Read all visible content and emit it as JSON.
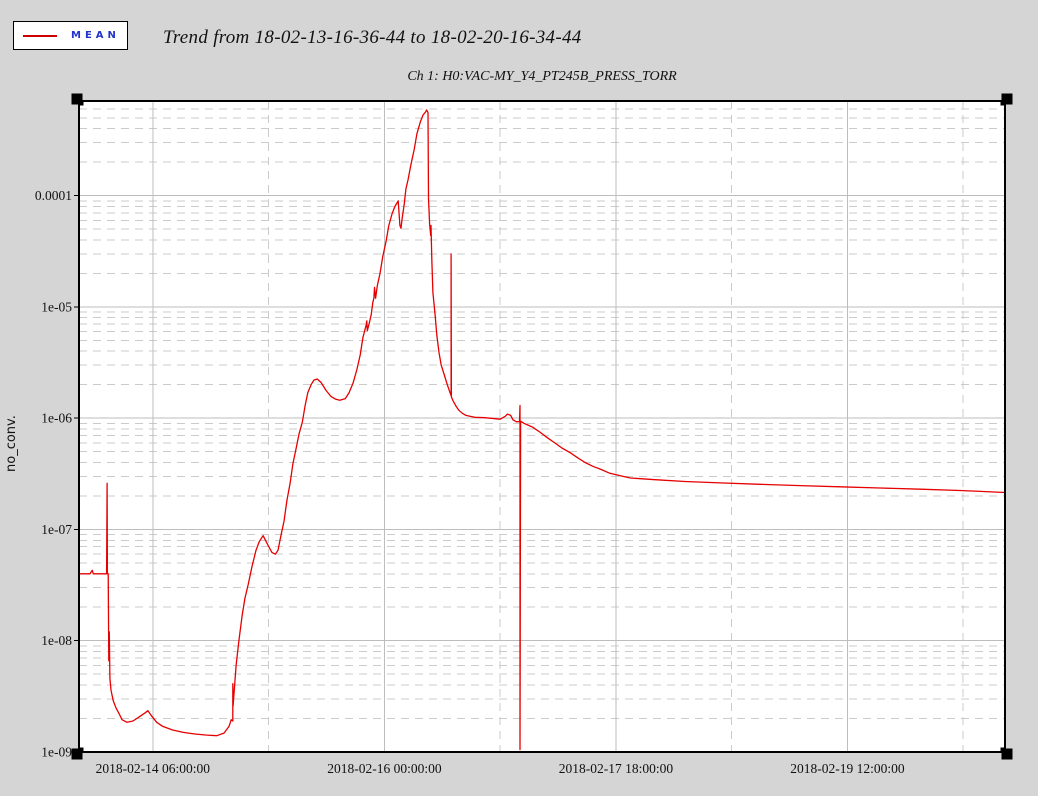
{
  "window": {
    "background": "#d5d5d5",
    "plot_background": "#ffffff"
  },
  "legend": {
    "label": "MEAN",
    "line_color": "#cc0000"
  },
  "header": {
    "title": "Trend from 18-02-13-16-36-44 to 18-02-20-16-34-44",
    "subtitle": "Ch 1: H0:VAC-MY_Y4_PT245B_PRESS_TORR"
  },
  "plot_style": {
    "frame_color": "#000000",
    "grid_major_color": "#bdbdbd",
    "grid_minor_color": "#cbcbcb",
    "handle_color": "#000000",
    "tick_label_color": "#111111"
  },
  "chart_data": {
    "type": "line",
    "title": "Trend from 18-02-13-16-36-44 to 18-02-20-16-34-44",
    "subtitle": "Ch 1: H0:VAC-MY_Y4_PT245B_PRESS_TORR",
    "ylabel": "no_conv.",
    "xlabel": "",
    "x_unit": "hours since 2018-02-13 16:36:44",
    "xlim": [
      0,
      167.967
    ],
    "ylim_log": [
      1e-09,
      0.00071
    ],
    "grid": {
      "horizontal_major": true,
      "horizontal_minor_log_2_to_9": true,
      "vertical_major": true,
      "vertical_minor": true
    },
    "legend_position": "top-left outside",
    "x_ticks": [
      {
        "hours": 13.388,
        "label": "2018-02-14 06:00:00"
      },
      {
        "hours": 55.388,
        "label": "2018-02-16 00:00:00"
      },
      {
        "hours": 97.388,
        "label": "2018-02-17 18:00:00"
      },
      {
        "hours": 139.388,
        "label": "2018-02-19 12:00:00"
      }
    ],
    "x_minor_hours": [
      34.388,
      76.388,
      118.388,
      160.388
    ],
    "y_ticks": [
      {
        "value": 0.0001,
        "label": "0.0001"
      },
      {
        "value": 1e-05,
        "label": "1e-05"
      },
      {
        "value": 1e-06,
        "label": "1e-06"
      },
      {
        "value": 1e-07,
        "label": "1e-07"
      },
      {
        "value": 1e-08,
        "label": "1e-08"
      },
      {
        "value": 1e-09,
        "label": "1e-09"
      }
    ],
    "series": [
      {
        "name": "MEAN",
        "color": "#e60000",
        "points": [
          [
            0,
            4e-08
          ],
          [
            1.0,
            4e-08
          ],
          [
            2.0,
            4e-08
          ],
          [
            2.4,
            4.3e-08
          ],
          [
            2.6,
            4e-08
          ],
          [
            4.0,
            4e-08
          ],
          [
            5.0,
            4e-08
          ],
          [
            5.1,
            2.6e-07
          ],
          [
            5.15,
            4e-08
          ],
          [
            5.3,
            4e-08
          ],
          [
            5.4,
            6.6e-09
          ],
          [
            5.5,
            1.2e-08
          ],
          [
            5.6,
            4.6e-09
          ],
          [
            5.8,
            3.6e-09
          ],
          [
            6.2,
            2.9e-09
          ],
          [
            6.7,
            2.5e-09
          ],
          [
            7.3,
            2.2e-09
          ],
          [
            7.8,
            1.95e-09
          ],
          [
            8.7,
            1.85e-09
          ],
          [
            9.8,
            1.9e-09
          ],
          [
            11.1,
            2.1e-09
          ],
          [
            12.0,
            2.25e-09
          ],
          [
            12.5,
            2.35e-09
          ],
          [
            13.2,
            2.1e-09
          ],
          [
            14.1,
            1.85e-09
          ],
          [
            15.2,
            1.7e-09
          ],
          [
            16.9,
            1.58e-09
          ],
          [
            18.9,
            1.5e-09
          ],
          [
            21.0,
            1.45e-09
          ],
          [
            23.2,
            1.42e-09
          ],
          [
            25.0,
            1.4e-09
          ],
          [
            26.3,
            1.48e-09
          ],
          [
            27.2,
            1.7e-09
          ],
          [
            27.6,
            1.95e-09
          ],
          [
            27.9,
            1.9e-09
          ],
          [
            27.9,
            4.1e-09
          ],
          [
            27.95,
            2.6e-09
          ],
          [
            28.5,
            6e-09
          ],
          [
            29.0,
            1e-08
          ],
          [
            29.6,
            1.7e-08
          ],
          [
            30.1,
            2.4e-08
          ],
          [
            30.7,
            3.2e-08
          ],
          [
            31.4,
            4.7e-08
          ],
          [
            32.1,
            6.5e-08
          ],
          [
            32.7,
            7.8e-08
          ],
          [
            33.4,
            8.8e-08
          ],
          [
            34.3,
            7.2e-08
          ],
          [
            35.0,
            6.2e-08
          ],
          [
            35.6,
            6e-08
          ],
          [
            36.1,
            6.5e-08
          ],
          [
            36.6,
            8.7e-08
          ],
          [
            37.2,
            1.2e-07
          ],
          [
            37.7,
            1.8e-07
          ],
          [
            38.3,
            2.6e-07
          ],
          [
            38.8,
            3.9e-07
          ],
          [
            39.4,
            5.4e-07
          ],
          [
            39.9,
            7.2e-07
          ],
          [
            40.5,
            9.2e-07
          ],
          [
            41.0,
            1.28e-06
          ],
          [
            41.5,
            1.7e-06
          ],
          [
            42.1,
            2e-06
          ],
          [
            42.6,
            2.2e-06
          ],
          [
            43.2,
            2.25e-06
          ],
          [
            43.9,
            2.1e-06
          ],
          [
            44.8,
            1.78e-06
          ],
          [
            45.7,
            1.57e-06
          ],
          [
            46.6,
            1.48e-06
          ],
          [
            47.3,
            1.45e-06
          ],
          [
            48.3,
            1.5e-06
          ],
          [
            49.0,
            1.7e-06
          ],
          [
            49.7,
            2.06e-06
          ],
          [
            50.4,
            2.74e-06
          ],
          [
            51.0,
            3.7e-06
          ],
          [
            51.5,
            5.3e-06
          ],
          [
            52.1,
            6.9e-06
          ],
          [
            52.2,
            7.5e-06
          ],
          [
            52.3,
            6.1e-06
          ],
          [
            52.6,
            7e-06
          ],
          [
            53.0,
            8.5e-06
          ],
          [
            53.3,
            1.1e-05
          ],
          [
            53.5,
            1.2e-05
          ],
          [
            53.6,
            1.5e-05
          ],
          [
            53.8,
            1.2e-05
          ],
          [
            54.1,
            1.55e-05
          ],
          [
            54.6,
            2e-05
          ],
          [
            55.1,
            2.85e-05
          ],
          [
            55.7,
            3.9e-05
          ],
          [
            56.2,
            5.4e-05
          ],
          [
            56.8,
            6.9e-05
          ],
          [
            57.3,
            8e-05
          ],
          [
            57.9,
            9e-05
          ],
          [
            58.2,
            5.4e-05
          ],
          [
            58.4,
            5.1e-05
          ],
          [
            58.6,
            6.2e-05
          ],
          [
            59.0,
            8.5e-05
          ],
          [
            59.3,
            0.000115
          ],
          [
            59.7,
            0.00014
          ],
          [
            60.2,
            0.00019
          ],
          [
            60.8,
            0.00026
          ],
          [
            61.3,
            0.00036
          ],
          [
            61.9,
            0.00046
          ],
          [
            62.4,
            0.00053
          ],
          [
            62.9,
            0.00057
          ],
          [
            63.05,
            0.00059
          ],
          [
            63.3,
            0.00056
          ],
          [
            63.4,
            9.4e-05
          ],
          [
            63.6,
            5.6e-05
          ],
          [
            63.8,
            4.4e-05
          ],
          [
            63.85,
            5.4e-05
          ],
          [
            64.0,
            2.7e-05
          ],
          [
            64.2,
            1.35e-05
          ],
          [
            64.6,
            8.5e-06
          ],
          [
            64.9,
            5.6e-06
          ],
          [
            65.3,
            3.9e-06
          ],
          [
            65.7,
            3e-06
          ],
          [
            66.2,
            2.5e-06
          ],
          [
            66.8,
            2e-06
          ],
          [
            67.3,
            1.7e-06
          ],
          [
            67.5,
            1.6e-06
          ],
          [
            67.5,
            3e-05
          ],
          [
            67.55,
            1.55e-06
          ],
          [
            67.8,
            1.45e-06
          ],
          [
            68.4,
            1.28e-06
          ],
          [
            68.9,
            1.18e-06
          ],
          [
            69.5,
            1.11e-06
          ],
          [
            70.2,
            1.06e-06
          ],
          [
            70.9,
            1.04e-06
          ],
          [
            71.8,
            1.02e-06
          ],
          [
            73.6,
            1.01e-06
          ],
          [
            75.5,
            9.9e-07
          ],
          [
            76.4,
            9.8e-07
          ],
          [
            77.3,
            1.04e-06
          ],
          [
            77.7,
            1.09e-06
          ],
          [
            78.3,
            1.06e-06
          ],
          [
            78.7,
            9.7e-07
          ],
          [
            79.3,
            9.3e-07
          ],
          [
            79.9,
            9.3e-07
          ],
          [
            80.0,
            1.3e-06
          ],
          [
            80.0,
            1.05e-09
          ],
          [
            80.1,
            9.4e-07
          ],
          [
            80.7,
            9e-07
          ],
          [
            81.4,
            8.7e-07
          ],
          [
            82.3,
            8.3e-07
          ],
          [
            83.6,
            7.5e-07
          ],
          [
            85.1,
            6.6e-07
          ],
          [
            86.3,
            6e-07
          ],
          [
            87.6,
            5.4e-07
          ],
          [
            89.1,
            4.9e-07
          ],
          [
            90.5,
            4.4e-07
          ],
          [
            91.8,
            4e-07
          ],
          [
            93.2,
            3.7e-07
          ],
          [
            94.5,
            3.5e-07
          ],
          [
            96.3,
            3.2e-07
          ],
          [
            98.1,
            3.05e-07
          ],
          [
            100.0,
            2.9e-07
          ],
          [
            104.5,
            2.8e-07
          ],
          [
            109.9,
            2.7e-07
          ],
          [
            116.3,
            2.62e-07
          ],
          [
            123.5,
            2.55e-07
          ],
          [
            130.8,
            2.48e-07
          ],
          [
            138.1,
            2.42e-07
          ],
          [
            145.3,
            2.36e-07
          ],
          [
            152.6,
            2.3e-07
          ],
          [
            159.8,
            2.24e-07
          ],
          [
            163.5,
            2.2e-07
          ],
          [
            167.967,
            2.15e-07
          ]
        ]
      }
    ]
  }
}
